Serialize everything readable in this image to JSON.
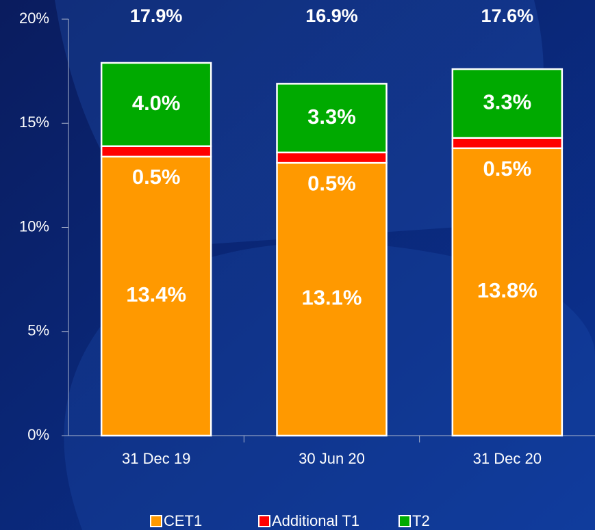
{
  "chart_data": {
    "type": "stacked_bar",
    "categories": [
      "31 Dec 19",
      "30 Jun 20",
      "31 Dec 20"
    ],
    "series": [
      {
        "name": "CET1",
        "color": "#ff9900",
        "values": [
          13.4,
          13.1,
          13.8
        ],
        "value_labels": [
          "13.4%",
          "13.1%",
          "13.8%"
        ]
      },
      {
        "name": "Additional T1",
        "color": "#ff0000",
        "values": [
          0.5,
          0.5,
          0.5
        ],
        "value_labels": [
          "0.5%",
          "0.5%",
          "0.5%"
        ]
      },
      {
        "name": "T2",
        "color": "#00aa00",
        "values": [
          4.0,
          3.3,
          3.3
        ],
        "value_labels": [
          "4.0%",
          "3.3%",
          "3.3%"
        ]
      }
    ],
    "totals": [
      17.9,
      16.9,
      17.6
    ],
    "total_labels": [
      "17.9%",
      "16.9%",
      "17.6%"
    ],
    "ylim": [
      0,
      20
    ],
    "yticks": [
      {
        "value": 0,
        "label": "0%"
      },
      {
        "value": 5,
        "label": "5%"
      },
      {
        "value": 10,
        "label": "10%"
      },
      {
        "value": 15,
        "label": "15%"
      },
      {
        "value": 20,
        "label": "20%"
      }
    ],
    "legend": "bottom"
  }
}
